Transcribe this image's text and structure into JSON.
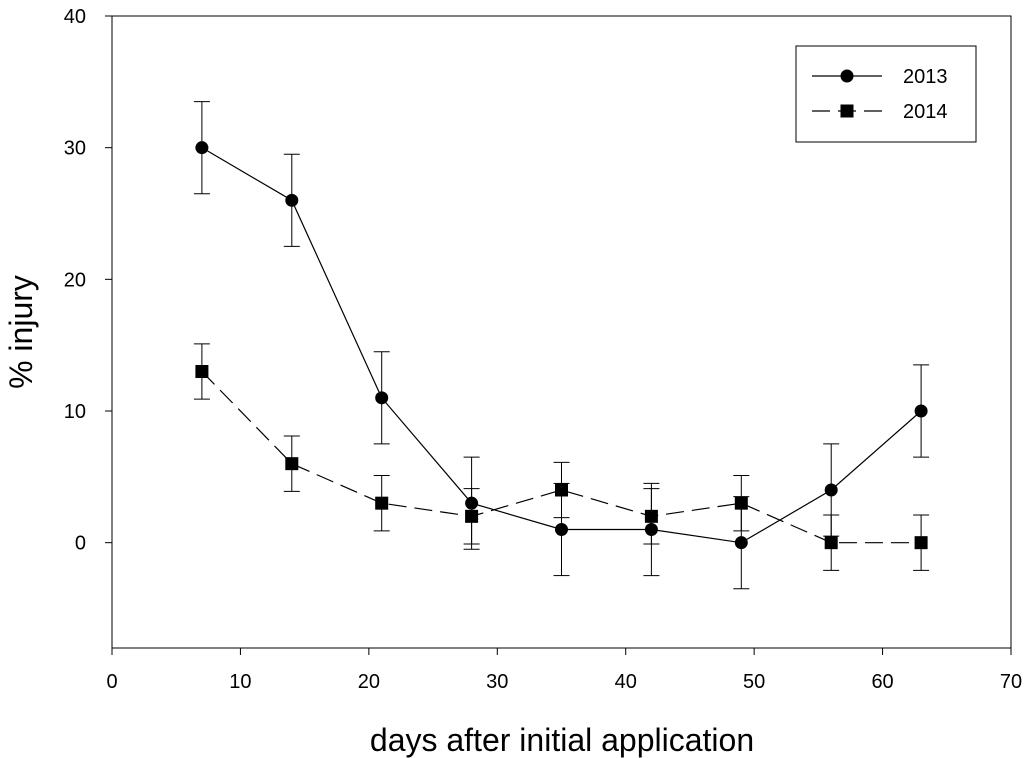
{
  "chart_data": {
    "type": "line",
    "title": "",
    "xlabel": "days after initial application",
    "ylabel": "% injury",
    "xlim": [
      0,
      70
    ],
    "ylim": [
      -8,
      40
    ],
    "xticks": [
      0,
      10,
      20,
      30,
      40,
      50,
      60,
      70
    ],
    "yticks": [
      0,
      10,
      20,
      30,
      40
    ],
    "grid": false,
    "legend_position": "top-right",
    "x": [
      7,
      14,
      21,
      28,
      35,
      42,
      49,
      56,
      63
    ],
    "series": [
      {
        "name": "2013",
        "marker": "circle",
        "line_style": "solid",
        "color": "#000000",
        "values": [
          30,
          26,
          11,
          3,
          1,
          1,
          0,
          4,
          10
        ],
        "error": [
          3.5,
          3.5,
          3.5,
          3.5,
          3.5,
          3.5,
          3.5,
          3.5,
          3.5
        ]
      },
      {
        "name": "2014",
        "marker": "square",
        "line_style": "dashed",
        "color": "#000000",
        "values": [
          13,
          6,
          3,
          2,
          4,
          2,
          3,
          0,
          0
        ],
        "error": [
          2.1,
          2.1,
          2.1,
          2.1,
          2.1,
          2.1,
          2.1,
          2.1,
          2.1
        ]
      }
    ]
  }
}
